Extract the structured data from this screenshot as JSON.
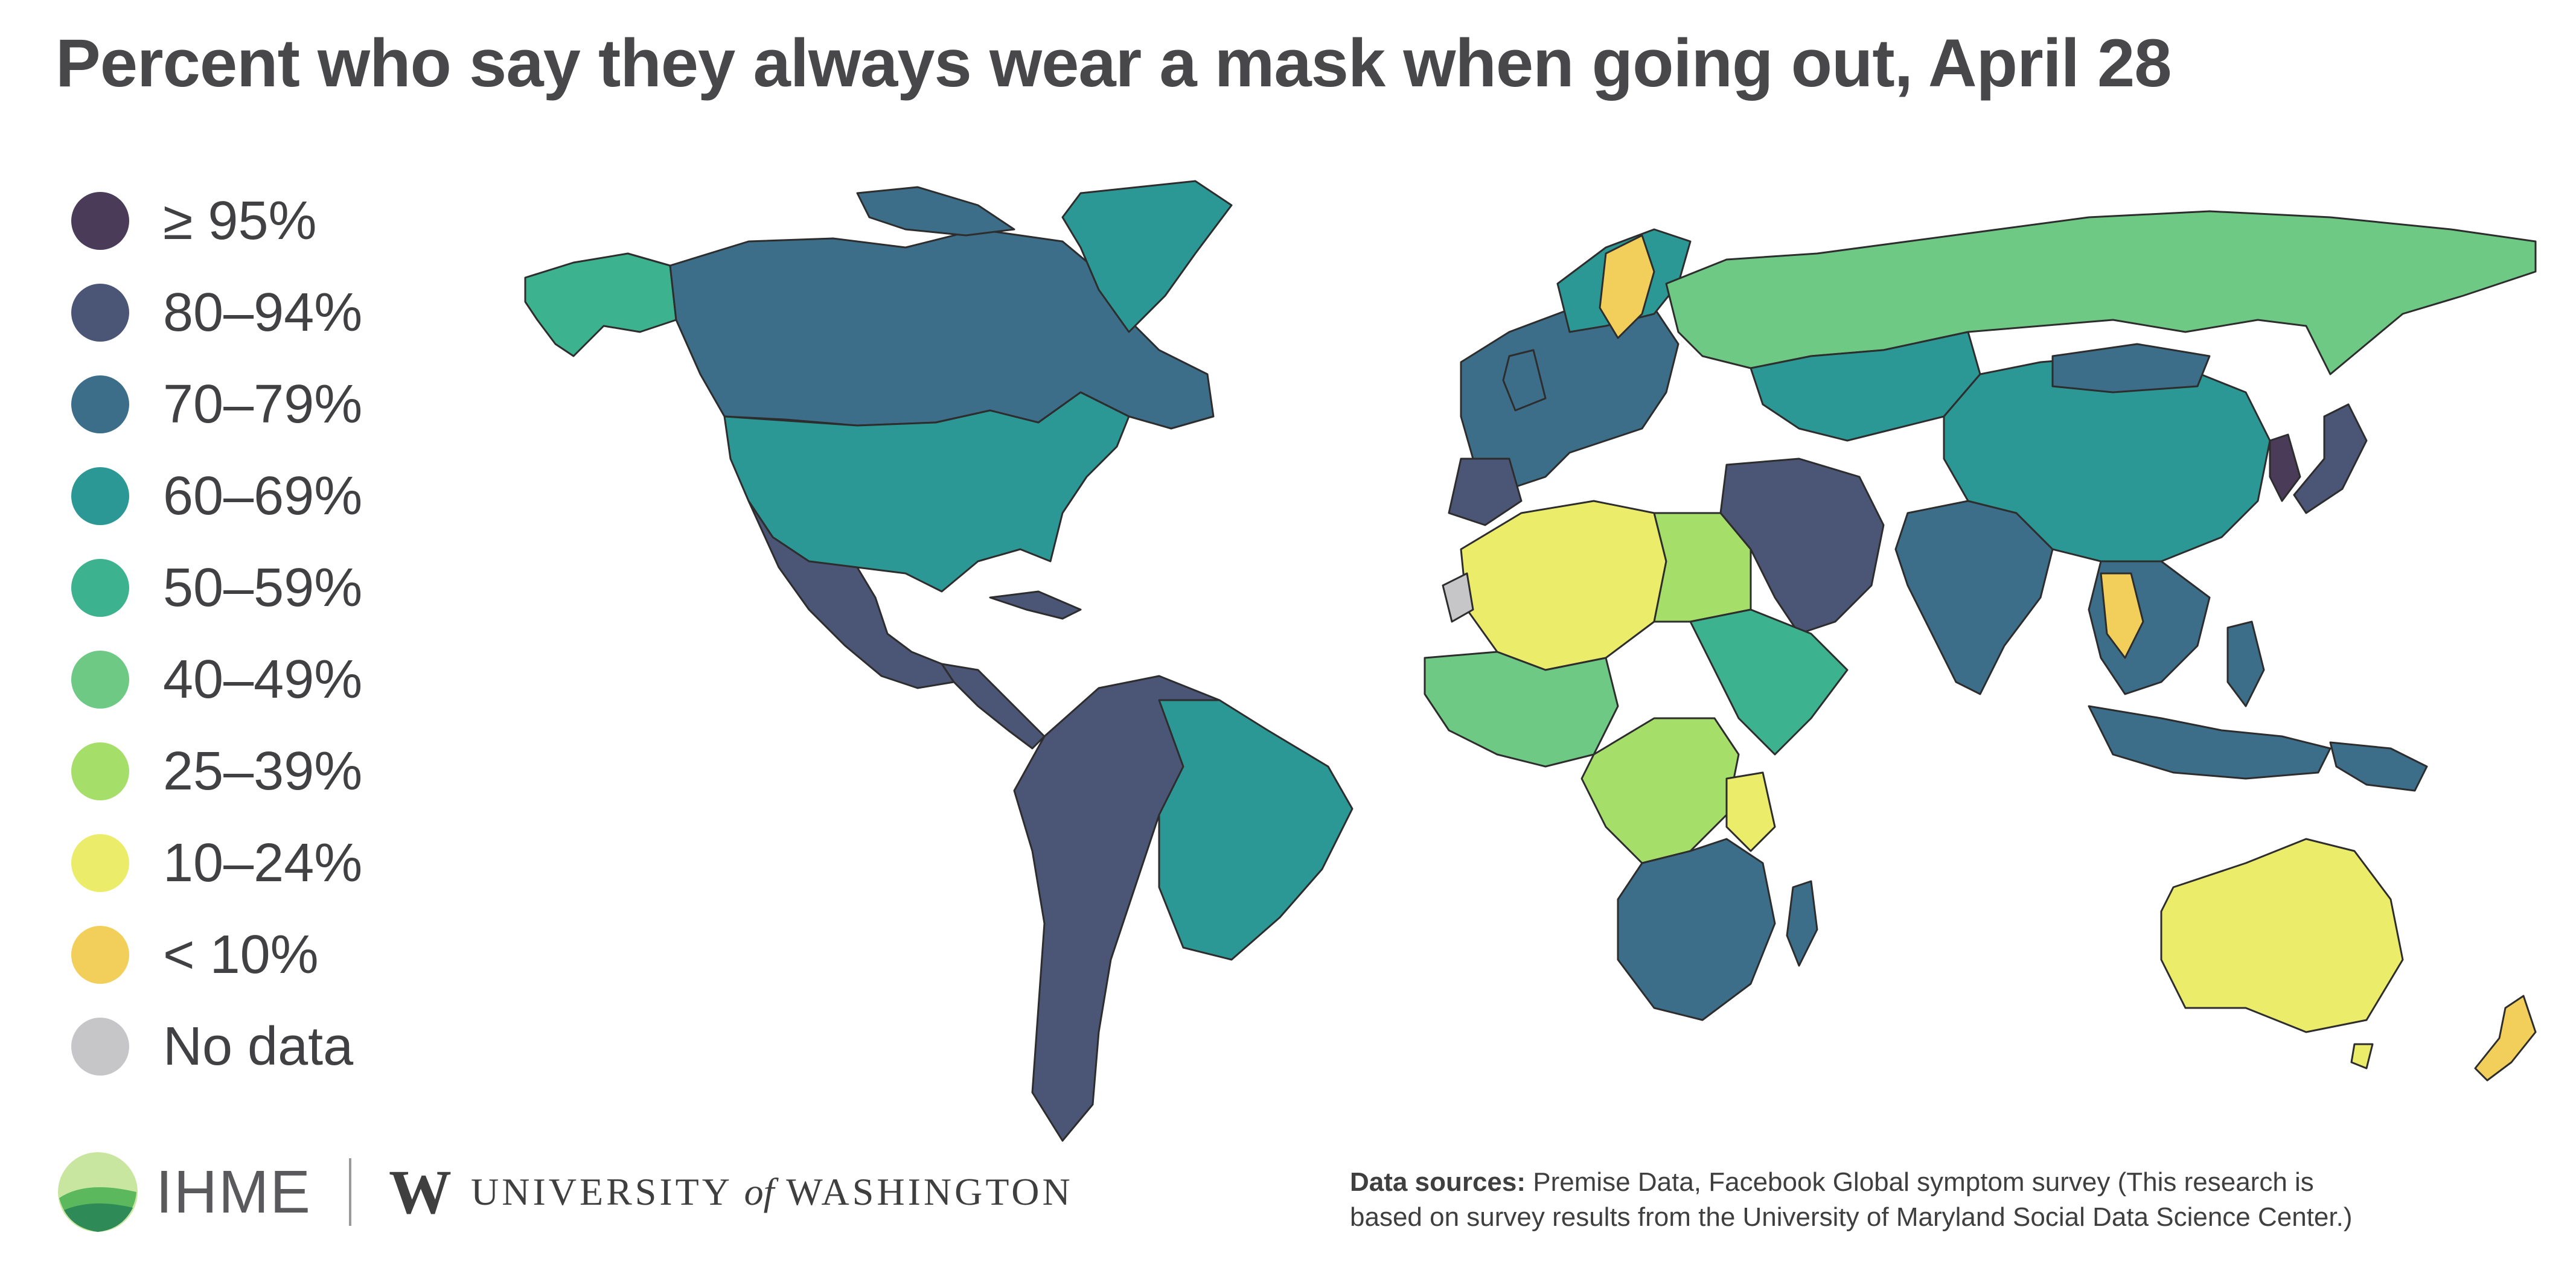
{
  "title": "Percent who say they always wear a mask when going out, April 28",
  "legend": [
    {
      "label": "≥ 95%",
      "color": "#4a3b58"
    },
    {
      "label": "80–94%",
      "color": "#4b5576"
    },
    {
      "label": "70–79%",
      "color": "#3c6e8a"
    },
    {
      "label": "60–69%",
      "color": "#2c9896"
    },
    {
      "label": "50–59%",
      "color": "#3db28f"
    },
    {
      "label": "40–49%",
      "color": "#6ec985"
    },
    {
      "label": "25–39%",
      "color": "#a6de6a"
    },
    {
      "label": "10–24%",
      "color": "#ecec6b"
    },
    {
      "label": "< 10%",
      "color": "#f2cf5a"
    },
    {
      "label": "No data",
      "color": "#c6c6c8"
    }
  ],
  "logos": {
    "ihme": "IHME",
    "uw_letter": "W",
    "uw_university": "UNIVERSITY",
    "uw_of": "of",
    "uw_washington": "WASHINGTON"
  },
  "sources": {
    "label": "Data sources:",
    "text": "Premise Data, Facebook Global symptom survey (This research is based on survey results from the University of Maryland Social Data Science Center.)"
  },
  "map_regions": [
    {
      "region": "Alaska",
      "bin": "50–59%"
    },
    {
      "region": "Canada",
      "bin": "70–79%"
    },
    {
      "region": "Greenland",
      "bin": "60–69%"
    },
    {
      "region": "United States",
      "bin": "60–69%"
    },
    {
      "region": "Mexico",
      "bin": "80–94%"
    },
    {
      "region": "Central America",
      "bin": "80–94%"
    },
    {
      "region": "South America",
      "bin": "80–94%"
    },
    {
      "region": "Brazil",
      "bin": "60–69%"
    },
    {
      "region": "Europe",
      "bin": "70–79%"
    },
    {
      "region": "Sweden",
      "bin": "< 10%"
    },
    {
      "region": "Russia",
      "bin": "40–49%"
    },
    {
      "region": "Central Asia",
      "bin": "60–69%"
    },
    {
      "region": "China",
      "bin": "60–69%"
    },
    {
      "region": "India",
      "bin": "70–79%"
    },
    {
      "region": "Middle East",
      "bin": "80–94%"
    },
    {
      "region": "North Africa",
      "bin": "10–24%"
    },
    {
      "region": "West Africa",
      "bin": "40–49%"
    },
    {
      "region": "Central Africa",
      "bin": "25–39%"
    },
    {
      "region": "Southern Africa",
      "bin": "70–79%"
    },
    {
      "region": "Tanzania",
      "bin": "10–24%"
    },
    {
      "region": "Southeast Asia",
      "bin": "70–79%"
    },
    {
      "region": "Indonesia",
      "bin": "70–79%"
    },
    {
      "region": "Korea",
      "bin": "≥ 95%"
    },
    {
      "region": "Japan",
      "bin": "80–94%"
    },
    {
      "region": "Australia",
      "bin": "10–24%"
    },
    {
      "region": "New Zealand",
      "bin": "< 10%"
    }
  ]
}
